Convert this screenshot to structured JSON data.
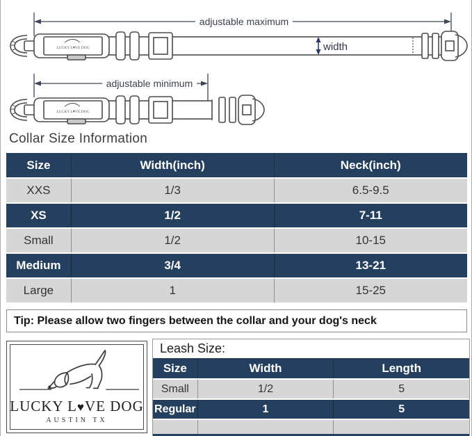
{
  "diagram": {
    "max_label": "adjustable maximum",
    "min_label": "adjustable minimum",
    "width_label": "width",
    "collar_tag_text": "LUCKY L♥VE DOG"
  },
  "collar": {
    "title": "Collar Size Information",
    "headers": [
      "Size",
      "Width(inch)",
      "Neck(inch)"
    ],
    "rows": [
      {
        "cells": [
          "XXS",
          "1/3",
          "6.5-9.5"
        ],
        "highlight": false
      },
      {
        "cells": [
          "XS",
          "1/2",
          "7-11"
        ],
        "highlight": true
      },
      {
        "cells": [
          "Small",
          "1/2",
          "10-15"
        ],
        "highlight": false
      },
      {
        "cells": [
          "Medium",
          "3/4",
          "13-21"
        ],
        "highlight": true
      },
      {
        "cells": [
          "Large",
          "1",
          "15-25"
        ],
        "highlight": false
      }
    ],
    "tip": "Tip: Please allow two fingers between the collar and your dog's neck"
  },
  "logo": {
    "brand_prefix": "LUCKY L",
    "brand_heart": "♥",
    "brand_suffix": "VE DOG",
    "location": "AUSTIN TX"
  },
  "leash": {
    "title": "Leash Size:",
    "headers": [
      "Size",
      "Width",
      "Length"
    ],
    "rows": [
      {
        "cells": [
          "Small",
          "1/2",
          "5"
        ],
        "highlight": false
      },
      {
        "cells": [
          "Regular",
          "1",
          "5"
        ],
        "highlight": true
      },
      {
        "cells": [
          "",
          "",
          ""
        ],
        "highlight": false
      }
    ]
  },
  "colors": {
    "navy": "#24405E",
    "light_gray": "#D6D6D6",
    "dimension_line": "#3F4658"
  }
}
